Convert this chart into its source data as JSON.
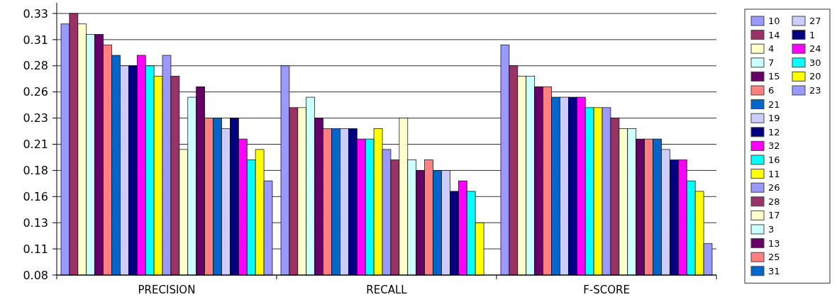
{
  "chart_data": {
    "type": "bar",
    "categories": [
      "PRECISION",
      "RECALL",
      "F-SCORE"
    ],
    "ylim": [
      0.08,
      0.33
    ],
    "yticks": [
      0.08,
      {
        "value": 0.105,
        "label": "0.11"
      },
      0.13,
      {
        "value": 0.155,
        "label": "0.16"
      },
      0.18,
      {
        "value": 0.205,
        "label": "0.21"
      },
      0.23,
      {
        "value": 0.255,
        "label": "0.26"
      },
      0.28,
      {
        "value": 0.305,
        "label": "0.31"
      },
      0.33
    ],
    "grid": "y",
    "legend": "right",
    "series": [
      {
        "name": "10",
        "color": "#9999ff",
        "values": [
          0.32,
          0.28,
          0.3
        ]
      },
      {
        "name": "14",
        "color": "#993366",
        "values": [
          0.33,
          0.24,
          0.28
        ]
      },
      {
        "name": "4",
        "color": "#ffffcc",
        "values": [
          0.32,
          0.24,
          0.27
        ]
      },
      {
        "name": "7",
        "color": "#ccffff",
        "values": [
          0.31,
          0.25,
          0.27
        ]
      },
      {
        "name": "15",
        "color": "#660066",
        "values": [
          0.31,
          0.23,
          0.26
        ]
      },
      {
        "name": "6",
        "color": "#ff8080",
        "values": [
          0.3,
          0.22,
          0.26
        ]
      },
      {
        "name": "21",
        "color": "#0066cc",
        "values": [
          0.29,
          0.22,
          0.25
        ]
      },
      {
        "name": "19",
        "color": "#ccccff",
        "values": [
          0.28,
          0.22,
          0.25
        ]
      },
      {
        "name": "12",
        "color": "#000080",
        "values": [
          0.28,
          0.22,
          0.25
        ]
      },
      {
        "name": "32",
        "color": "#ff00ff",
        "values": [
          0.29,
          0.21,
          0.25
        ]
      },
      {
        "name": "16",
        "color": "#00ffff",
        "values": [
          0.28,
          0.21,
          0.24
        ]
      },
      {
        "name": "11",
        "color": "#ffff00",
        "values": [
          0.27,
          0.22,
          0.24
        ]
      },
      {
        "name": "26",
        "color": "#9999ff",
        "values": [
          0.29,
          0.2,
          0.24
        ]
      },
      {
        "name": "28",
        "color": "#993366",
        "values": [
          0.27,
          0.19,
          0.23
        ]
      },
      {
        "name": "17",
        "color": "#ffffcc",
        "values": [
          0.2,
          0.23,
          0.22
        ]
      },
      {
        "name": "3",
        "color": "#ccffff",
        "values": [
          0.25,
          0.19,
          0.22
        ]
      },
      {
        "name": "13",
        "color": "#660066",
        "values": [
          0.26,
          0.18,
          0.21
        ]
      },
      {
        "name": "25",
        "color": "#ff8080",
        "values": [
          0.23,
          0.19,
          0.21
        ]
      },
      {
        "name": "31",
        "color": "#0066cc",
        "values": [
          0.23,
          0.18,
          0.21
        ]
      },
      {
        "name": "27",
        "color": "#ccccff",
        "values": [
          0.22,
          0.18,
          0.2
        ]
      },
      {
        "name": "1",
        "color": "#000080",
        "values": [
          0.23,
          0.16,
          0.19
        ]
      },
      {
        "name": "24",
        "color": "#ff00ff",
        "values": [
          0.21,
          0.17,
          0.19
        ]
      },
      {
        "name": "30",
        "color": "#00ffff",
        "values": [
          0.19,
          0.16,
          0.17
        ]
      },
      {
        "name": "20",
        "color": "#ffff00",
        "values": [
          0.2,
          0.13,
          0.16
        ]
      },
      {
        "name": "23",
        "color": "#9999ff",
        "values": [
          0.17,
          null,
          0.11
        ]
      }
    ]
  }
}
